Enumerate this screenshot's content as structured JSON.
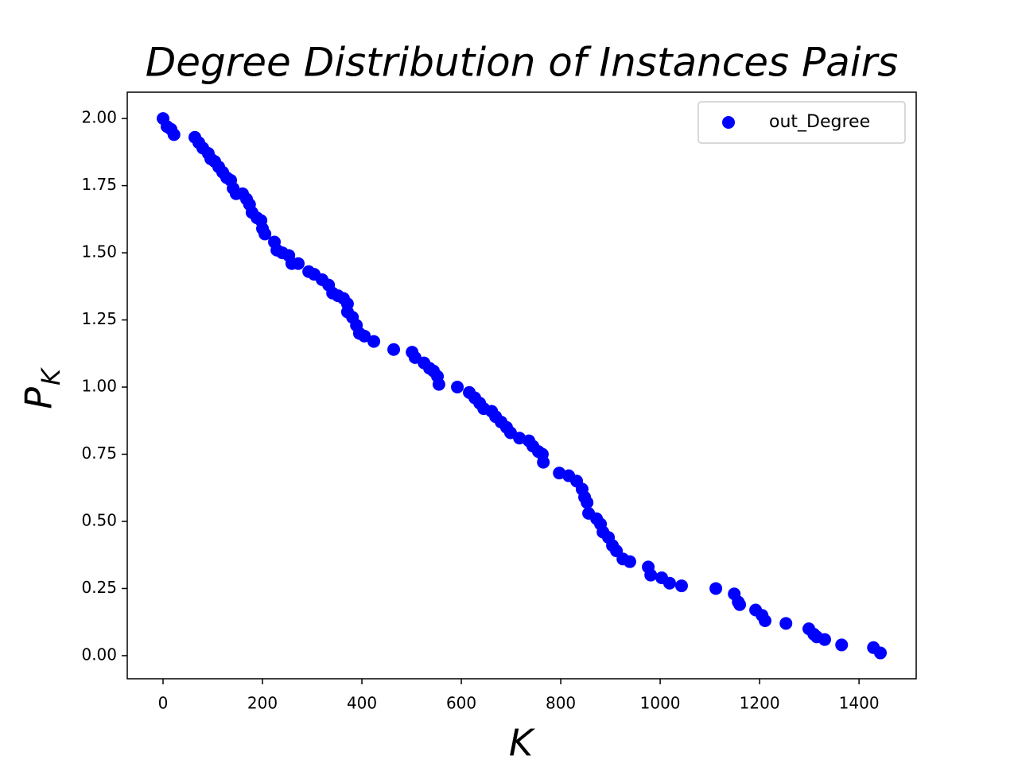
{
  "chart_data": {
    "type": "scatter",
    "title": "Degree Distribution of Instances Pairs",
    "x_label": "K",
    "y_label": "P",
    "y_label_subscript": "K",
    "legend_position": "upper right",
    "grid": false,
    "xlim": [
      -72,
      1515
    ],
    "ylim": [
      -0.086,
      2.098
    ],
    "xticks": [
      0,
      200,
      400,
      600,
      800,
      1000,
      1200,
      1400
    ],
    "yticks": [
      {
        "value": 0,
        "label": "0.00"
      },
      {
        "value": 0.25,
        "label": "0.25"
      },
      {
        "value": 0.5,
        "label": "0.50"
      },
      {
        "value": 0.75,
        "label": "0.75"
      },
      {
        "value": 1,
        "label": "1.00"
      },
      {
        "value": 1.25,
        "label": "1.25"
      },
      {
        "value": 1.5,
        "label": "1.50"
      },
      {
        "value": 1.75,
        "label": "1.75"
      },
      {
        "value": 2,
        "label": "2.00"
      }
    ],
    "series": [
      {
        "name": "out_Degree",
        "color": "#0000ff",
        "x": [
          0,
          8,
          16,
          22,
          64,
          72,
          80,
          91,
          96,
          104,
          112,
          120,
          128,
          136,
          141,
          147,
          160,
          168,
          174,
          179,
          189,
          197,
          200,
          205,
          224,
          229,
          240,
          253,
          259,
          272,
          293,
          304,
          320,
          333,
          341,
          352,
          363,
          371,
          371,
          381,
          389,
          395,
          405,
          424,
          464,
          501,
          507,
          525,
          536,
          544,
          552,
          555,
          592,
          616,
          627,
          637,
          645,
          661,
          669,
          680,
          691,
          699,
          717,
          736,
          744,
          755,
          763,
          765,
          797,
          816,
          832,
          843,
          848,
          853,
          856,
          872,
          880,
          885,
          896,
          904,
          912,
          925,
          939,
          976,
          981,
          1003,
          1019,
          1043,
          1112,
          1149,
          1157,
          1160,
          1192,
          1205,
          1211,
          1253,
          1299,
          1309,
          1315,
          1331,
          1365,
          1429,
          1443
        ],
        "values": [
          2.0,
          1.97,
          1.96,
          1.94,
          1.93,
          1.91,
          1.89,
          1.87,
          1.85,
          1.84,
          1.82,
          1.8,
          1.78,
          1.77,
          1.74,
          1.72,
          1.72,
          1.7,
          1.68,
          1.65,
          1.63,
          1.62,
          1.59,
          1.57,
          1.54,
          1.51,
          1.5,
          1.49,
          1.46,
          1.46,
          1.43,
          1.42,
          1.4,
          1.38,
          1.35,
          1.34,
          1.33,
          1.31,
          1.28,
          1.26,
          1.23,
          1.2,
          1.19,
          1.17,
          1.14,
          1.13,
          1.11,
          1.09,
          1.07,
          1.06,
          1.04,
          1.01,
          1.0,
          0.98,
          0.96,
          0.94,
          0.92,
          0.91,
          0.89,
          0.87,
          0.85,
          0.83,
          0.81,
          0.8,
          0.78,
          0.76,
          0.75,
          0.72,
          0.68,
          0.67,
          0.65,
          0.62,
          0.59,
          0.57,
          0.53,
          0.51,
          0.49,
          0.46,
          0.44,
          0.41,
          0.39,
          0.36,
          0.35,
          0.33,
          0.3,
          0.29,
          0.27,
          0.26,
          0.25,
          0.23,
          0.2,
          0.19,
          0.17,
          0.15,
          0.13,
          0.12,
          0.1,
          0.08,
          0.07,
          0.06,
          0.04,
          0.03,
          0.01
        ]
      }
    ]
  }
}
